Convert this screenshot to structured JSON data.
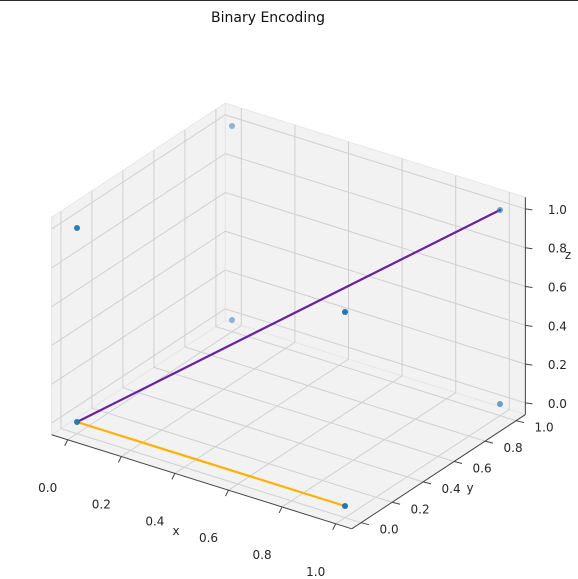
{
  "chart_data": {
    "type": "scatter3d",
    "title": "Binary Encoding",
    "xlabel": "x",
    "ylabel": "y",
    "zlabel": "z",
    "xlim": [
      0,
      1
    ],
    "ylim": [
      0,
      1
    ],
    "zlim": [
      0,
      1
    ],
    "xticks": [
      "0.0",
      "0.2",
      "0.4",
      "0.6",
      "0.8",
      "1.0"
    ],
    "yticks": [
      "0.0",
      "0.2",
      "0.4",
      "0.6",
      "0.8",
      "1.0"
    ],
    "zticks": [
      "0.0",
      "0.2",
      "0.4",
      "0.6",
      "0.8",
      "1.0"
    ],
    "grid": true,
    "points": [
      {
        "x": 0,
        "y": 0,
        "z": 0
      },
      {
        "x": 1,
        "y": 0,
        "z": 0
      },
      {
        "x": 0,
        "y": 1,
        "z": 0
      },
      {
        "x": 1,
        "y": 1,
        "z": 0
      },
      {
        "x": 0,
        "y": 0,
        "z": 1
      },
      {
        "x": 1,
        "y": 0,
        "z": 1
      },
      {
        "x": 0,
        "y": 1,
        "z": 1
      },
      {
        "x": 1,
        "y": 1,
        "z": 1
      }
    ],
    "point_color": "#1f77b4",
    "segments": [
      {
        "from": [
          0,
          0,
          0
        ],
        "to": [
          1,
          1,
          1
        ],
        "color": "#6a1fa3"
      },
      {
        "from": [
          0,
          0,
          0
        ],
        "to": [
          1,
          0,
          0
        ],
        "color": "#ffb000"
      }
    ]
  },
  "colors": {
    "pane_fill": "#f2f2f2",
    "pane_edge": "#e6e6e6",
    "grid": "#d0d0d0",
    "axis": "#444444"
  }
}
